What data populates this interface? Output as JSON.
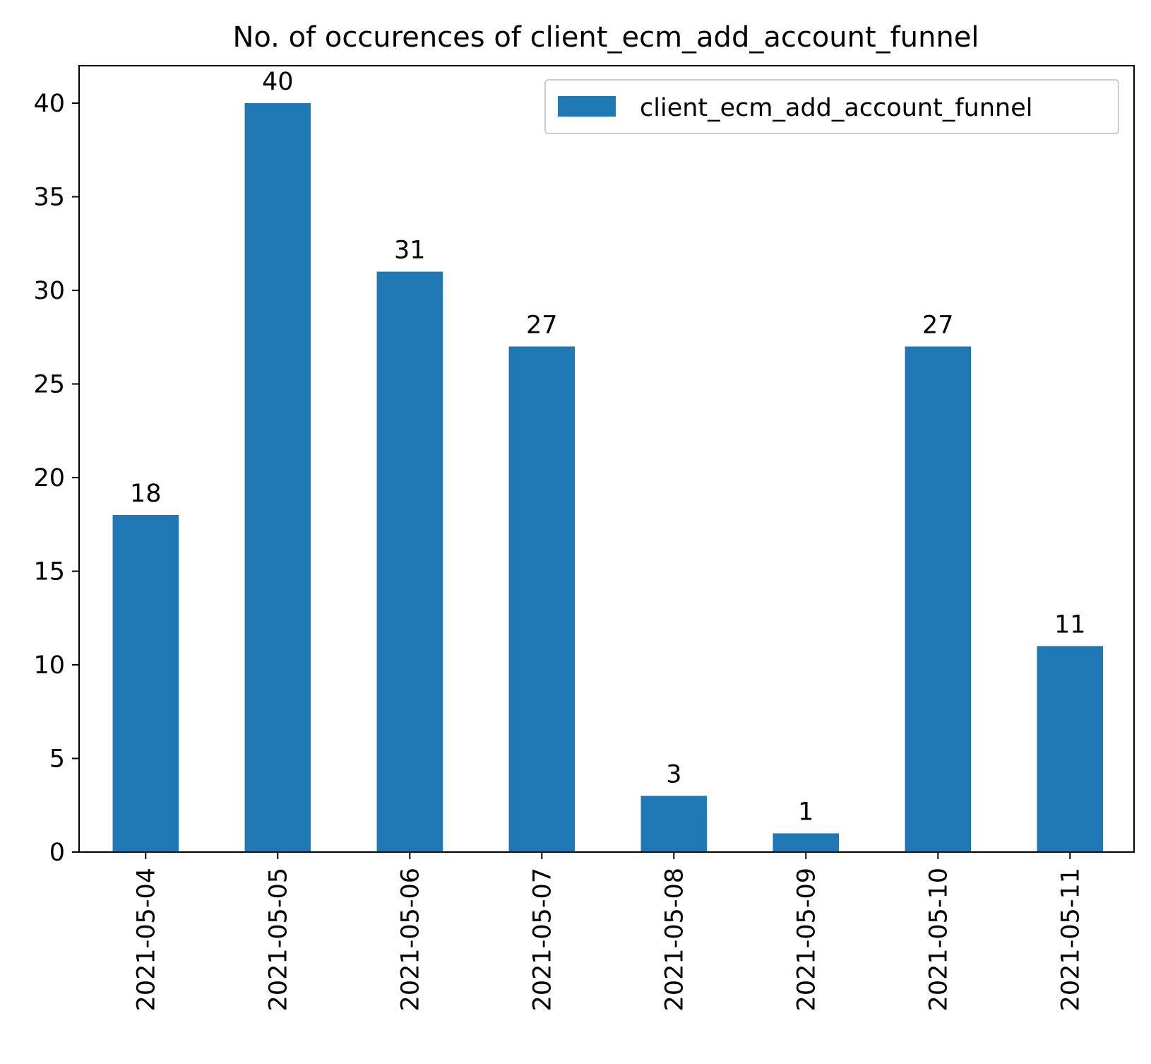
{
  "chart_data": {
    "type": "bar",
    "title": "No. of occurences of client_ecm_add_account_funnel",
    "xlabel": "",
    "ylabel": "",
    "categories": [
      "2021-05-04",
      "2021-05-05",
      "2021-05-06",
      "2021-05-07",
      "2021-05-08",
      "2021-05-09",
      "2021-05-10",
      "2021-05-11"
    ],
    "series": [
      {
        "name": "client_ecm_add_account_funnel",
        "values": [
          18,
          40,
          31,
          27,
          3,
          1,
          27,
          11
        ],
        "color": "#1f77b4"
      }
    ],
    "data_labels": [
      "18",
      "40",
      "31",
      "27",
      "3",
      "1",
      "27",
      "11"
    ],
    "ylim": [
      0,
      42
    ],
    "yticks": [
      0,
      5,
      10,
      15,
      20,
      25,
      30,
      35,
      40
    ],
    "ytick_labels": [
      "0",
      "5",
      "10",
      "15",
      "20",
      "25",
      "30",
      "35",
      "40"
    ],
    "grid": false,
    "legend_position": "top-right"
  }
}
